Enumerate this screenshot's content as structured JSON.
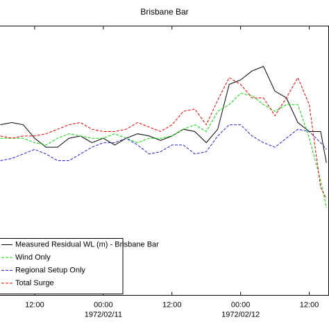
{
  "chart_data": {
    "type": "line",
    "title": "Brisbane Bar",
    "x": [
      6,
      8,
      10,
      12,
      14,
      16,
      18,
      20,
      22,
      24,
      26,
      28,
      30,
      32,
      34,
      36,
      38,
      40,
      42,
      44,
      46,
      48,
      50,
      52,
      54,
      56,
      58,
      60,
      62,
      63
    ],
    "xlim": [
      5.94,
      63.39
    ],
    "xticks": [
      {
        "value": 12,
        "label": "12:00"
      },
      {
        "value": 24,
        "label": "00:00"
      },
      {
        "value": 36,
        "label": "12:00"
      },
      {
        "value": 48,
        "label": "00:00"
      },
      {
        "value": 60,
        "label": "12:00"
      }
    ],
    "xtick_dates": [
      {
        "value": 24,
        "label": "1972/02/11"
      },
      {
        "value": 48,
        "label": "1972/02/12"
      }
    ],
    "ylim": [
      -0.6,
      0.6
    ],
    "legend": "lower left",
    "series": [
      {
        "name": "Measured Residual WL (m) - Brisbane Bar",
        "color": "#000000",
        "dashed": false,
        "values": [
          0.16,
          0.17,
          0.16,
          0.1,
          0.06,
          0.06,
          0.1,
          0.11,
          0.08,
          0.1,
          0.07,
          0.1,
          0.12,
          0.11,
          0.09,
          0.11,
          0.14,
          0.13,
          0.08,
          0.14,
          0.34,
          0.36,
          0.4,
          0.42,
          0.31,
          0.28,
          0.17,
          0.13,
          0.13,
          -0.01
        ]
      },
      {
        "name": "Wind Only",
        "color": "#00dd00",
        "dashed": true,
        "values": [
          0.1,
          0.1,
          0.1,
          0.08,
          0.07,
          0.1,
          0.12,
          0.11,
          0.1,
          0.1,
          0.12,
          0.1,
          0.08,
          0.1,
          0.1,
          0.11,
          0.14,
          0.16,
          0.13,
          0.22,
          0.25,
          0.3,
          0.29,
          0.25,
          0.22,
          0.25,
          0.25,
          0.1,
          -0.09,
          -0.21
        ]
      },
      {
        "name": "Regional Setup Only",
        "color": "#2222cc",
        "dashed": true,
        "values": [
          0.0,
          0.01,
          0.03,
          0.05,
          0.03,
          0.0,
          0.0,
          0.03,
          0.06,
          0.08,
          0.08,
          0.1,
          0.07,
          0.03,
          0.04,
          0.07,
          0.07,
          0.03,
          0.04,
          0.11,
          0.16,
          0.16,
          0.11,
          0.08,
          0.06,
          0.1,
          0.14,
          0.13,
          0.08,
          0.05
        ]
      },
      {
        "name": "Total Surge",
        "color": "#ee0000",
        "dashed": true,
        "values": [
          0.11,
          0.1,
          0.11,
          0.11,
          0.12,
          0.14,
          0.16,
          0.17,
          0.14,
          0.13,
          0.13,
          0.14,
          0.17,
          0.15,
          0.13,
          0.16,
          0.22,
          0.23,
          0.16,
          0.27,
          0.37,
          0.34,
          0.28,
          0.28,
          0.2,
          0.28,
          0.37,
          0.25,
          -0.12,
          -0.17
        ]
      }
    ]
  }
}
